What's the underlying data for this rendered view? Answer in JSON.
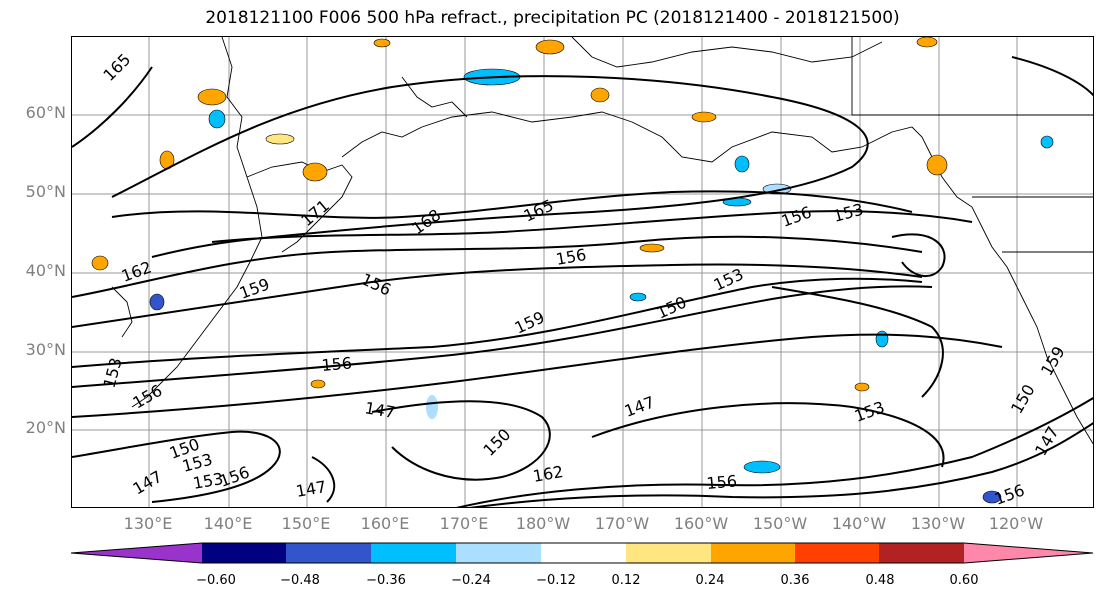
{
  "title": "2018121100 F006 500 hPa refract., precipitation PC (2018121400 - 2018121500)",
  "lat_labels": [
    "60°N",
    "50°N",
    "40°N",
    "30°N",
    "20°N"
  ],
  "lon_labels": [
    "130°E",
    "140°E",
    "150°E",
    "160°E",
    "170°E",
    "180°W",
    "170°W",
    "160°W",
    "150°W",
    "140°W",
    "130°W",
    "120°W"
  ],
  "contour_labels": [
    "165",
    "171",
    "168",
    "165",
    "156",
    "153",
    "162",
    "159",
    "156",
    "156",
    "153",
    "150",
    "159",
    "156",
    "153",
    "156",
    "147",
    "147",
    "150",
    "153",
    "150",
    "153",
    "147",
    "153",
    "156",
    "147",
    "162",
    "156",
    "150",
    "147",
    "156",
    "159"
  ],
  "colorbar": {
    "ticks": [
      "−0.60",
      "−0.48",
      "−0.36",
      "−0.24",
      "−0.12",
      "0.12",
      "0.24",
      "0.36",
      "0.48",
      "0.60"
    ],
    "colors": [
      "#9933cc",
      "#000080",
      "#3355cc",
      "#00bfff",
      "#aadfff",
      "#ffffff",
      "#ffe680",
      "#ffa500",
      "#ff4000",
      "#b22222",
      "#ff88aa"
    ]
  },
  "colors": {
    "grid": "#999999",
    "axis_label": "#808080",
    "contour": "#000000"
  }
}
